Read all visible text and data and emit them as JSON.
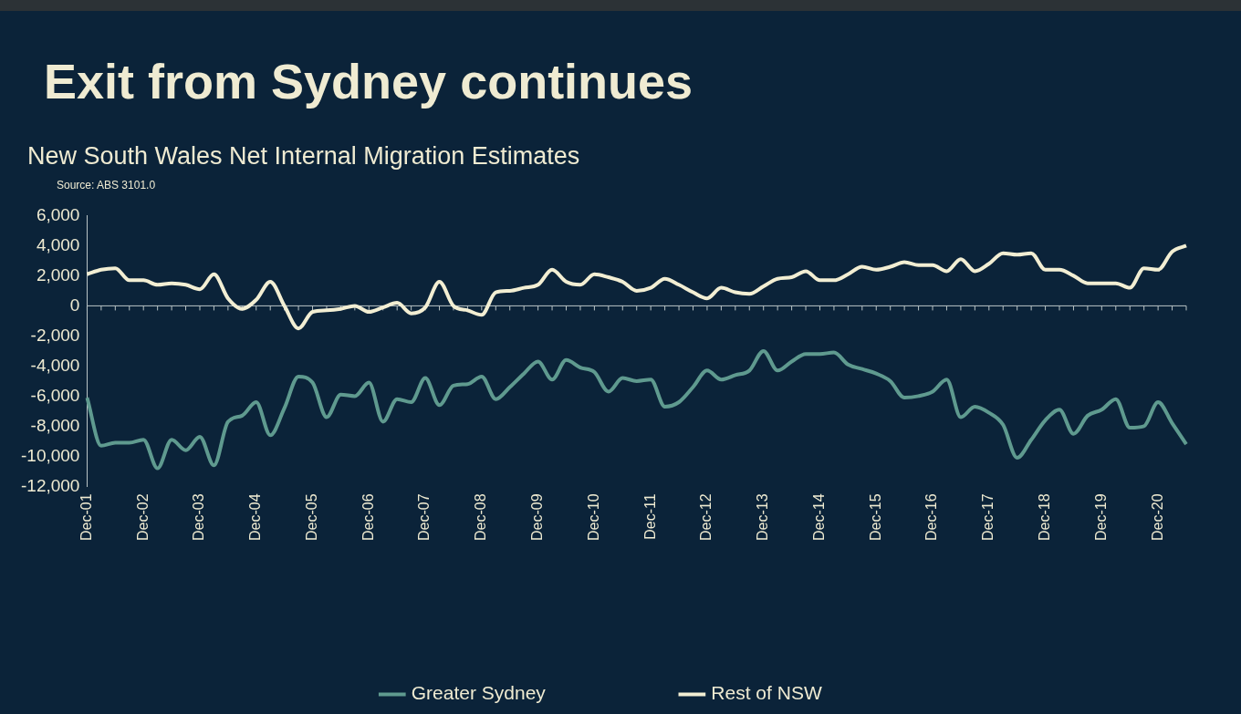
{
  "chart_data": {
    "type": "line",
    "title": "Exit from Sydney continues",
    "subtitle": "New South Wales Net Internal Migration Estimates",
    "annotations": [
      "Source: ABS 3101.0"
    ],
    "categories": [
      "Dec-01",
      null,
      null,
      null,
      "Dec-02",
      null,
      null,
      null,
      "Dec-03",
      null,
      null,
      null,
      "Dec-04",
      null,
      null,
      null,
      "Dec-05",
      null,
      null,
      null,
      "Dec-06",
      null,
      null,
      null,
      "Dec-07",
      null,
      null,
      null,
      "Dec-08",
      null,
      null,
      null,
      "Dec-09",
      null,
      null,
      null,
      "Dec-10",
      null,
      null,
      null,
      "Dec-11",
      null,
      null,
      null,
      "Dec-12",
      null,
      null,
      null,
      "Dec-13",
      null,
      null,
      null,
      "Dec-14",
      null,
      null,
      null,
      "Dec-15",
      null,
      null,
      null,
      "Dec-16",
      null,
      null,
      null,
      "Dec-17",
      null,
      null,
      null,
      "Dec-18",
      null,
      null,
      null,
      "Dec-19",
      null,
      null,
      null,
      "Dec-20",
      null,
      null
    ],
    "series": [
      {
        "name": "Greater Sydney",
        "color": "#5f9a8f",
        "values": [
          -6100,
          -9300,
          -9100,
          -9100,
          -8900,
          -10800,
          -8900,
          -9600,
          -8700,
          -10600,
          -7700,
          -7300,
          -6400,
          -8600,
          -6800,
          -4700,
          -5100,
          -7400,
          -5900,
          -6000,
          -5100,
          -7700,
          -6200,
          -6400,
          -4800,
          -6600,
          -5300,
          -5200,
          -4700,
          -6200,
          -5400,
          -4500,
          -3700,
          -4900,
          -3600,
          -4100,
          -4400,
          -5700,
          -4800,
          -5000,
          -4900,
          -6700,
          -6400,
          -5400,
          -4300,
          -4900,
          -4600,
          -4300,
          -3000,
          -4300,
          -3700,
          -3200,
          -3200,
          -3100,
          -3900,
          -4200,
          -4500,
          -5000,
          -6100,
          -6000,
          -5700,
          -4900,
          -7400,
          -6700,
          -7100,
          -7900,
          -10100,
          -8900,
          -7600,
          -6900,
          -8500,
          -7300,
          -6900,
          -6200,
          -8100,
          -8000,
          -6400,
          -7800,
          -9200
        ]
      },
      {
        "name": "Rest of NSW",
        "color": "#f2eed3",
        "values": [
          2100,
          2400,
          2500,
          1700,
          1700,
          1400,
          1500,
          1400,
          1100,
          2100,
          500,
          -200,
          400,
          1600,
          0,
          -1500,
          -400,
          -300,
          -200,
          0,
          -400,
          -100,
          200,
          -500,
          -100,
          1600,
          0,
          -300,
          -600,
          900,
          1000,
          1200,
          1400,
          2400,
          1600,
          1400,
          2100,
          1900,
          1600,
          1000,
          1200,
          1800,
          1400,
          900,
          500,
          1200,
          900,
          800,
          1300,
          1800,
          1900,
          2300,
          1700,
          1700,
          2100,
          2600,
          2400,
          2600,
          2900,
          2700,
          2700,
          2300,
          3100,
          2300,
          2800,
          3500,
          3400,
          3500,
          2400,
          2400,
          2000,
          1500,
          1500,
          1500,
          1200,
          2500,
          2400,
          3600,
          4000
        ]
      }
    ],
    "ylim": [
      -12000,
      6000
    ],
    "yticks": [
      {
        "value": -12000,
        "label": "-12,000"
      },
      {
        "value": -10000,
        "label": "-10,000"
      },
      {
        "value": -8000,
        "label": "-8,000"
      },
      {
        "value": -6000,
        "label": "-6,000"
      },
      {
        "value": -4000,
        "label": "-4,000"
      },
      {
        "value": -2000,
        "label": "-2,000"
      },
      0,
      {
        "value": 2000,
        "label": "2,000"
      },
      {
        "value": 4000,
        "label": "4,000"
      },
      {
        "value": 6000,
        "label": "6,000"
      }
    ],
    "legend": "bottom"
  }
}
